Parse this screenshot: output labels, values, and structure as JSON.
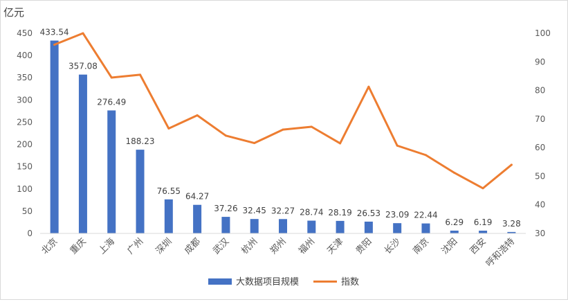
{
  "chart_data": {
    "type": "bar+line",
    "y_unit_label": "亿元",
    "categories": [
      "北京",
      "重庆",
      "上海",
      "广州",
      "深圳",
      "成都",
      "武汉",
      "杭州",
      "郑州",
      "福州",
      "天津",
      "贵阳",
      "长沙",
      "南京",
      "沈阳",
      "西安",
      "呼和浩特"
    ],
    "series": [
      {
        "name": "大数据项目规模",
        "type": "bar",
        "axis": "left",
        "color": "#4472C4",
        "values": [
          433.54,
          357.08,
          276.49,
          188.23,
          76.55,
          64.27,
          37.26,
          32.45,
          32.27,
          28.74,
          28.19,
          26.53,
          23.09,
          22.44,
          6.29,
          6.19,
          3.28
        ],
        "labels": [
          "433.54",
          "357.08",
          "276.49",
          "188.23",
          "76.55",
          "64.27",
          "37.26",
          "32.45",
          "32.27",
          "28.74",
          "28.19",
          "26.53",
          "23.09",
          "22.44",
          "6.29",
          "6.19",
          "3.28"
        ]
      },
      {
        "name": "指数",
        "type": "line",
        "axis": "right",
        "color": "#ED7D31",
        "values": [
          96,
          100,
          84.5,
          85.5,
          66.7,
          71.3,
          64.2,
          61.6,
          66.3,
          67.3,
          61.5,
          81.3,
          60.7,
          57.4,
          51.2,
          45.8,
          54
        ]
      }
    ],
    "y_left": {
      "min": 0,
      "max": 450,
      "ticks": [
        "0",
        "50",
        "100",
        "150",
        "200",
        "250",
        "300",
        "350",
        "400",
        "450"
      ]
    },
    "y_right": {
      "min": 30,
      "max": 100,
      "ticks": [
        "30",
        "40",
        "50",
        "60",
        "70",
        "80",
        "90",
        "100"
      ]
    },
    "legend_position": "bottom",
    "grid": false
  }
}
